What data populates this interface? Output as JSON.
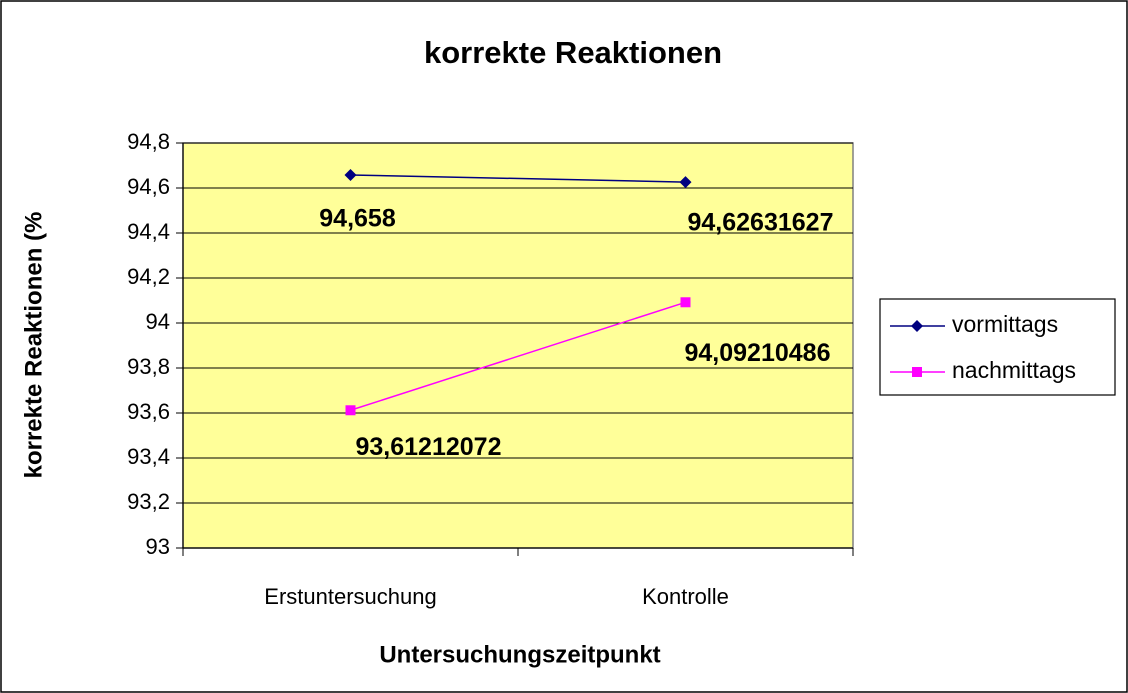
{
  "chart_data": {
    "type": "line",
    "title": "korrekte Reaktionen",
    "x_label": "Untersuchungszeitpunkt",
    "y_label": "korrekte Reaktionen (%",
    "categories": [
      "Erstuntersuchung",
      "Kontrolle"
    ],
    "series": [
      {
        "name": "vormittags",
        "color": "#000080",
        "marker": "diamond",
        "values": [
          94.658,
          94.62631627
        ],
        "value_labels": [
          "94,658",
          "94,62631627"
        ]
      },
      {
        "name": "nachmittags",
        "color": "#ff00ff",
        "marker": "square",
        "values": [
          93.61212072,
          94.09210486
        ],
        "value_labels": [
          "93,61212072",
          "94,09210486"
        ]
      }
    ],
    "ylim": [
      93,
      94.8
    ],
    "yticks": [
      93,
      {
        "value": 93.2,
        "label": "93,2"
      },
      {
        "value": 93.4,
        "label": "93,4"
      },
      {
        "value": 93.6,
        "label": "93,6"
      },
      {
        "value": 93.8,
        "label": "93,8"
      },
      94,
      {
        "value": 94.2,
        "label": "94,2"
      },
      {
        "value": 94.4,
        "label": "94,4"
      },
      {
        "value": 94.6,
        "label": "94,6"
      },
      {
        "value": 94.8,
        "label": "94,8"
      }
    ],
    "grid": true,
    "legend": "right",
    "plot_background": "#ffff99"
  }
}
